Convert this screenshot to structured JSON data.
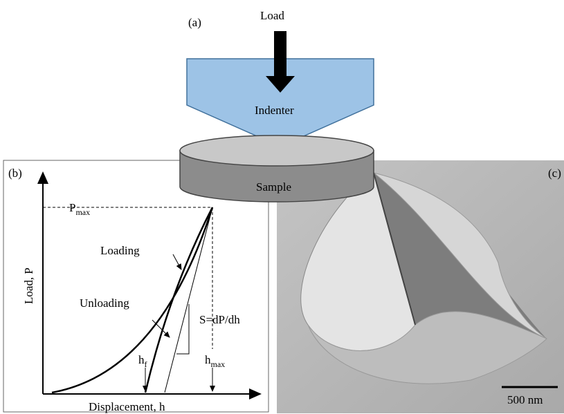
{
  "panel_a": {
    "label": "(a)",
    "load": "Load",
    "indenter": "Indenter",
    "sample": "Sample"
  },
  "panel_b": {
    "label": "(b)",
    "y_axis": "Load, P",
    "x_axis": "Displacement, h",
    "p_max": {
      "text": "P",
      "sub": "max"
    },
    "loading": "Loading",
    "unloading": "Unloading",
    "stiffness": "S=dP/dh",
    "h_f": {
      "text": "h",
      "sub": "f"
    },
    "h_max": {
      "text": "h",
      "sub": "max"
    }
  },
  "panel_c": {
    "label": "(c)",
    "scale_bar": "500 nm"
  }
}
